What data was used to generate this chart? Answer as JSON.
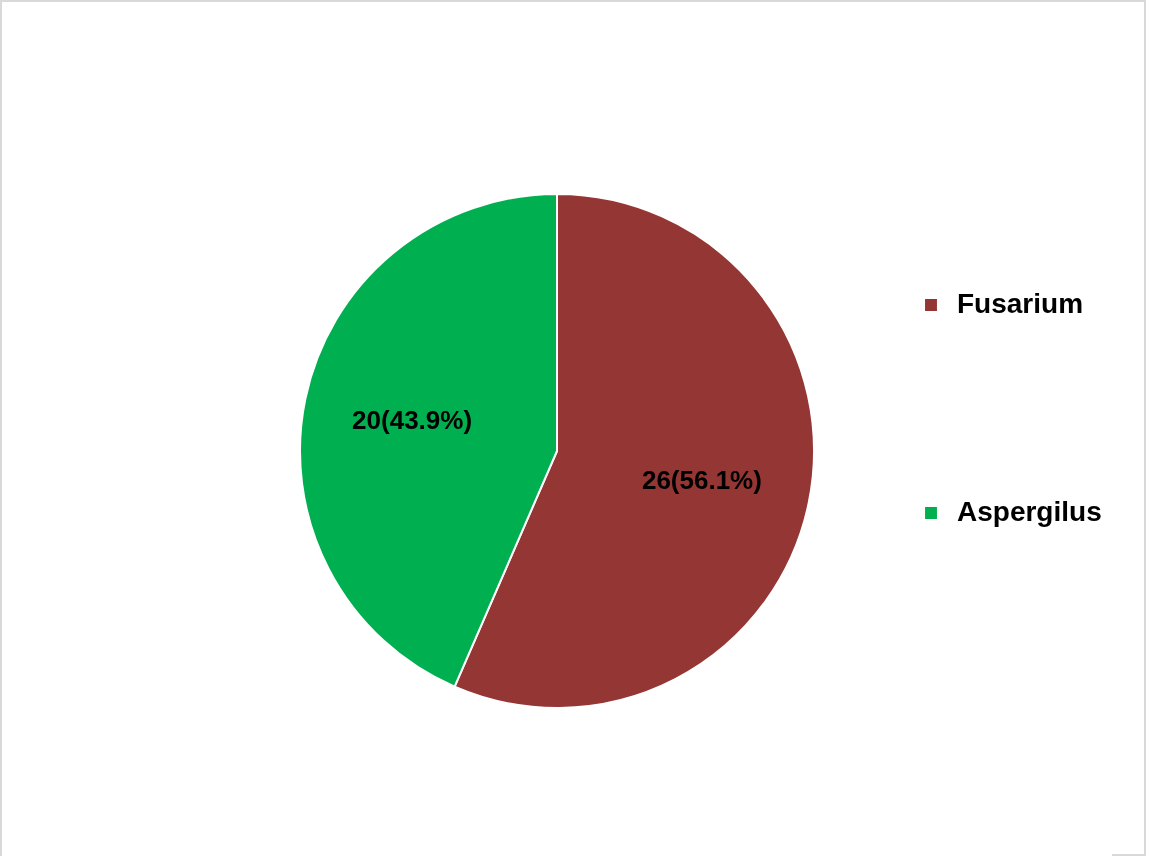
{
  "chart_data": {
    "type": "pie",
    "categories": [
      "Fusarium",
      "Aspergilus"
    ],
    "values": [
      26,
      20
    ],
    "colors": [
      "#943634",
      "#00b050"
    ],
    "value_labels": [
      "26(56.1%)",
      "20(43.9%)"
    ],
    "legend": "right"
  }
}
